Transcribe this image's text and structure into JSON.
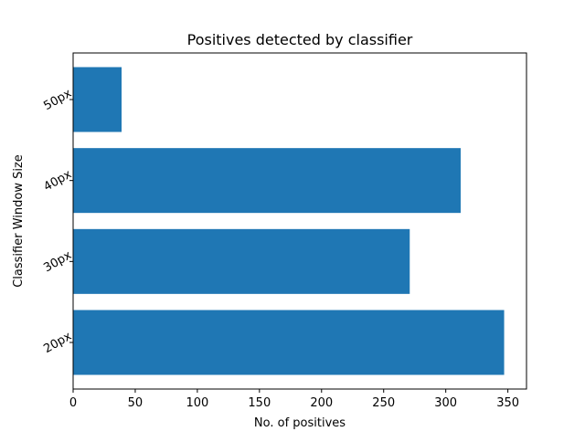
{
  "chart_data": {
    "type": "bar",
    "orientation": "horizontal",
    "title": "Positives detected by classifier",
    "xlabel": "No. of positives",
    "ylabel": "Classifier Window Size",
    "categories": [
      "20px",
      "30px",
      "40px",
      "50px"
    ],
    "values": [
      347,
      271,
      312,
      39
    ],
    "xlim": [
      0,
      365
    ],
    "xticks": [
      0,
      50,
      100,
      150,
      200,
      250,
      300,
      350
    ],
    "grid": false,
    "legend": "none",
    "bar_color": "#1f77b4"
  }
}
